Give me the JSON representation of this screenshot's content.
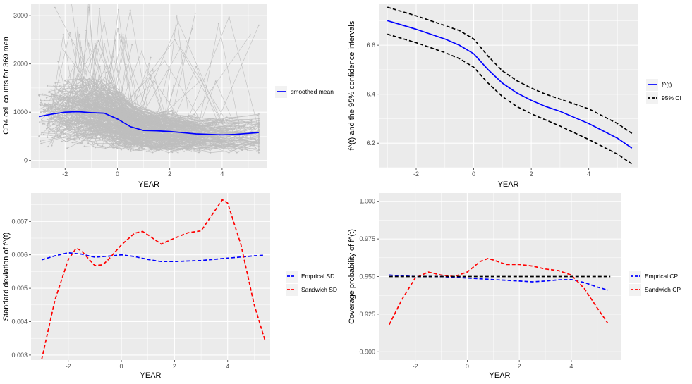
{
  "chart_data": [
    {
      "panel": "top-left",
      "type": "line",
      "xlabel": "YEAR",
      "ylabel": "CD4 cell counts for 369 men",
      "xlim": [
        -3.3,
        5.7
      ],
      "ylim": [
        -150,
        3250
      ],
      "xticks": [
        -2,
        0,
        2,
        4
      ],
      "yticks": [
        0,
        1000,
        2000,
        3000
      ],
      "xtick_labels": [
        "-2",
        "0",
        "2",
        "4"
      ],
      "ytick_labels": [
        "0",
        "1000",
        "2000",
        "3000"
      ],
      "background_series": {
        "name": "individual trajectories",
        "color": "#bebebe",
        "count": 369
      },
      "series": [
        {
          "name": "smoothed mean",
          "color": "#0000ff",
          "linestyle": "solid",
          "x": [
            -3.0,
            -2.5,
            -2.0,
            -1.5,
            -1.0,
            -0.5,
            0.0,
            0.5,
            1.0,
            1.5,
            2.0,
            2.5,
            3.0,
            3.5,
            4.0,
            4.5,
            5.0,
            5.4
          ],
          "y": [
            910,
            960,
            1000,
            1010,
            990,
            980,
            860,
            700,
            620,
            615,
            600,
            575,
            550,
            540,
            530,
            540,
            560,
            580
          ]
        }
      ],
      "legend": {
        "position": "right",
        "entries": [
          "smoothed mean"
        ]
      }
    },
    {
      "panel": "top-right",
      "type": "line",
      "xlabel": "YEAR",
      "ylabel": "f^(t) and the 95% confidence intervals",
      "xlim": [
        -3.3,
        5.7
      ],
      "ylim": [
        6.1,
        6.77
      ],
      "xticks": [
        -2,
        0,
        2,
        4
      ],
      "yticks": [
        6.2,
        6.4,
        6.6
      ],
      "xtick_labels": [
        "-2",
        "0",
        "2",
        "4"
      ],
      "ytick_labels": [
        "6.2",
        "6.4",
        "6.6"
      ],
      "series": [
        {
          "name": "f^(t)",
          "color": "#0000ff",
          "linestyle": "solid",
          "x": [
            -3.0,
            -2.0,
            -1.0,
            -0.5,
            0.0,
            0.5,
            1.0,
            1.5,
            2.0,
            2.5,
            3.0,
            4.0,
            5.0,
            5.5
          ],
          "y": [
            6.7,
            6.665,
            6.625,
            6.6,
            6.565,
            6.5,
            6.445,
            6.405,
            6.375,
            6.35,
            6.33,
            6.28,
            6.22,
            6.18
          ]
        },
        {
          "name": "95% CI",
          "color": "#000000",
          "linestyle": "dashed",
          "x": [
            -3.0,
            -2.0,
            -1.0,
            -0.5,
            0.0,
            0.5,
            1.0,
            1.5,
            2.0,
            2.5,
            3.0,
            4.0,
            5.0,
            5.5
          ],
          "y": [
            6.755,
            6.72,
            6.68,
            6.66,
            6.625,
            6.555,
            6.495,
            6.455,
            6.425,
            6.4,
            6.38,
            6.34,
            6.28,
            6.24
          ]
        },
        {
          "name": "95% CI lower",
          "color": "#000000",
          "linestyle": "dashed",
          "x": [
            -3.0,
            -2.0,
            -1.0,
            -0.5,
            0.0,
            0.5,
            1.0,
            1.5,
            2.0,
            2.5,
            3.0,
            4.0,
            5.0,
            5.5
          ],
          "y": [
            6.645,
            6.61,
            6.57,
            6.545,
            6.51,
            6.445,
            6.39,
            6.35,
            6.32,
            6.295,
            6.27,
            6.215,
            6.155,
            6.115
          ]
        }
      ],
      "legend": {
        "position": "right",
        "entries": [
          "f^(t)",
          "95% CI"
        ]
      }
    },
    {
      "panel": "bottom-left",
      "type": "line",
      "xlabel": "YEAR",
      "ylabel": "Standard deviation of f^(t)",
      "xlim": [
        -3.4,
        5.6
      ],
      "ylim": [
        0.00285,
        0.00785
      ],
      "xticks": [
        -2,
        0,
        2,
        4
      ],
      "yticks": [
        0.003,
        0.004,
        0.005,
        0.006,
        0.007
      ],
      "xtick_labels": [
        "-2",
        "0",
        "2",
        "4"
      ],
      "ytick_labels": [
        "0.003",
        "0.004",
        "0.005",
        "0.006",
        "0.007"
      ],
      "series": [
        {
          "name": "Emprical SD",
          "color": "#0000ff",
          "linestyle": "dashed",
          "x": [
            -3.0,
            -2.5,
            -2.0,
            -1.5,
            -1.0,
            -0.5,
            0.0,
            0.5,
            1.0,
            1.5,
            2.0,
            3.0,
            4.0,
            5.0,
            5.4
          ],
          "y": [
            0.00585,
            0.00597,
            0.00606,
            0.00602,
            0.00593,
            0.00596,
            0.006,
            0.00595,
            0.00586,
            0.0058,
            0.0058,
            0.00583,
            0.0059,
            0.00597,
            0.00599
          ]
        },
        {
          "name": "Sandwich SD",
          "color": "#ff0000",
          "linestyle": "dashed",
          "x": [
            -3.0,
            -2.5,
            -2.0,
            -1.7,
            -1.5,
            -1.2,
            -1.0,
            -0.7,
            -0.5,
            0.0,
            0.5,
            0.8,
            1.0,
            1.5,
            2.0,
            2.5,
            3.0,
            3.5,
            3.8,
            4.0,
            4.5,
            5.0,
            5.4
          ],
          "y": [
            0.00287,
            0.00465,
            0.00585,
            0.0062,
            0.00612,
            0.00585,
            0.00568,
            0.0057,
            0.00585,
            0.0063,
            0.00665,
            0.0067,
            0.0066,
            0.00632,
            0.0065,
            0.00666,
            0.00672,
            0.0073,
            0.00765,
            0.00755,
            0.0063,
            0.0045,
            0.00345
          ]
        }
      ],
      "legend": {
        "position": "right",
        "entries": [
          "Emprical SD",
          "Sandwich SD"
        ]
      }
    },
    {
      "panel": "bottom-right",
      "type": "line",
      "xlabel": "YEAR",
      "ylabel": "Coverage probability of f^(t)",
      "xlim": [
        -3.4,
        5.9
      ],
      "ylim": [
        0.8945,
        1.0055
      ],
      "xticks": [
        -2,
        0,
        2,
        4
      ],
      "yticks": [
        0.9,
        0.925,
        0.95,
        0.975,
        1.0
      ],
      "xtick_labels": [
        "-2",
        "0",
        "2",
        "4"
      ],
      "ytick_labels": [
        "0.900",
        "0.925",
        "0.950",
        "0.975",
        "1.000"
      ],
      "series": [
        {
          "name": "Emprical CP",
          "color": "#0000ff",
          "linestyle": "dashed",
          "x": [
            -3.0,
            -2.0,
            -1.0,
            0.0,
            1.0,
            2.0,
            2.5,
            3.0,
            3.5,
            4.0,
            4.5,
            5.0,
            5.4
          ],
          "y": [
            0.951,
            0.95,
            0.95,
            0.949,
            0.948,
            0.947,
            0.9465,
            0.947,
            0.9478,
            0.948,
            0.946,
            0.943,
            0.941
          ]
        },
        {
          "name": "Sandwich CP",
          "color": "#ff0000",
          "linestyle": "dashed",
          "x": [
            -3.0,
            -2.5,
            -2.0,
            -1.5,
            -1.0,
            -0.5,
            0.0,
            0.5,
            0.8,
            1.0,
            1.5,
            2.0,
            2.5,
            3.0,
            3.5,
            4.0,
            4.5,
            5.0,
            5.4
          ],
          "y": [
            0.918,
            0.935,
            0.949,
            0.953,
            0.951,
            0.95,
            0.953,
            0.96,
            0.962,
            0.961,
            0.958,
            0.958,
            0.957,
            0.955,
            0.954,
            0.951,
            0.942,
            0.929,
            0.919
          ]
        },
        {
          "name": "nominal 0.95",
          "color": "#000000",
          "linestyle": "dashed",
          "x": [
            -3.0,
            5.5
          ],
          "y": [
            0.95,
            0.95
          ]
        }
      ],
      "legend": {
        "position": "right",
        "entries": [
          "Emprical CP",
          "Sandwich CP"
        ]
      }
    }
  ]
}
